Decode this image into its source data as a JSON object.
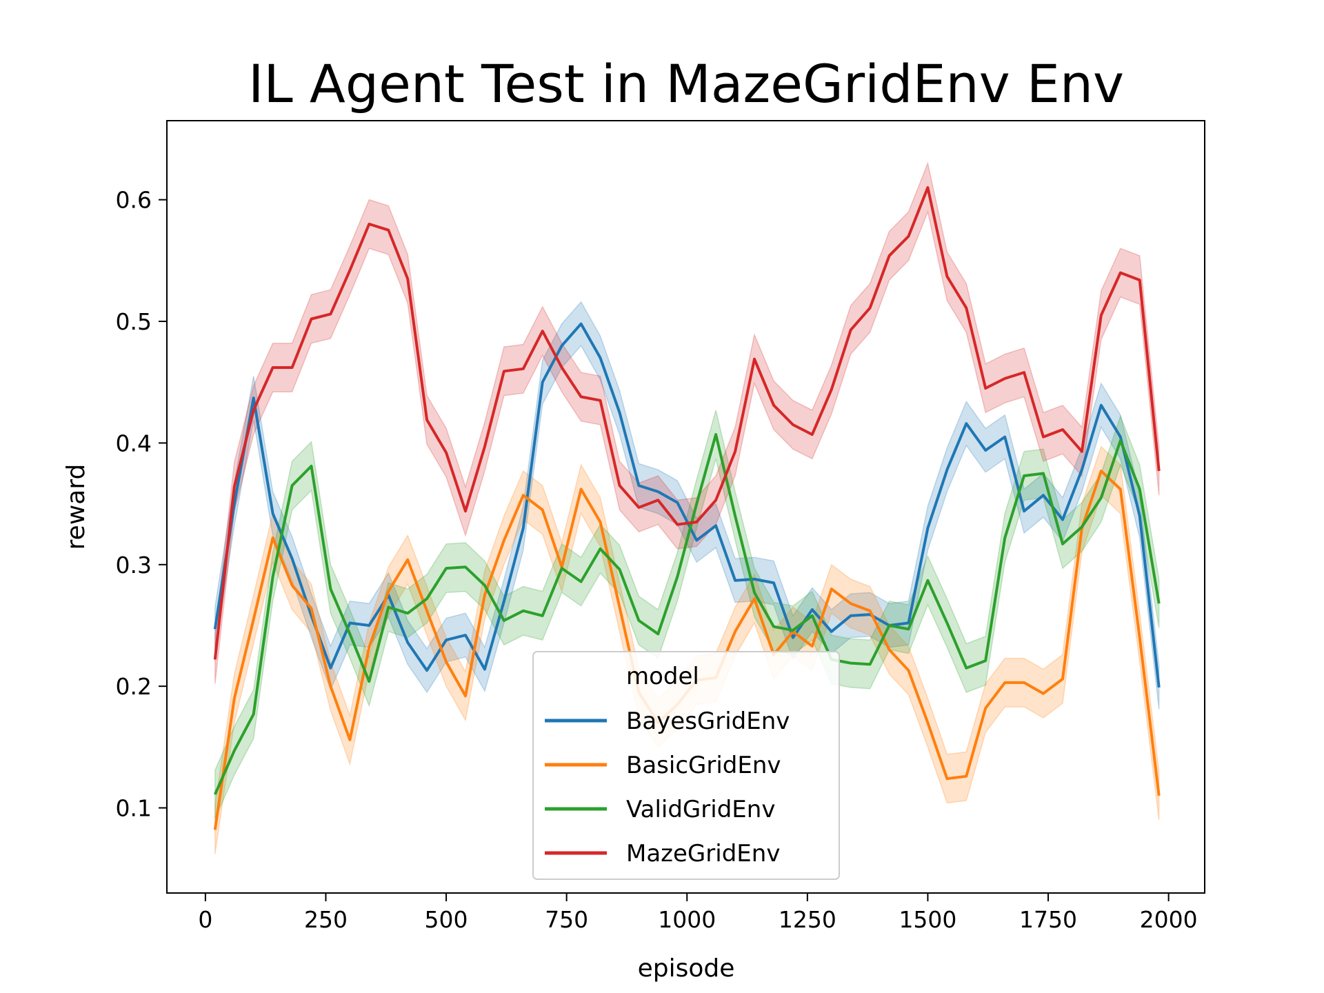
{
  "chart_data": {
    "type": "line",
    "title": "IL Agent Test in MazeGridEnv Env",
    "xlabel": "episode",
    "ylabel": "reward",
    "xlim": [
      -80,
      2075
    ],
    "ylim": [
      0.03,
      0.665
    ],
    "xticks": [
      0,
      250,
      500,
      750,
      1000,
      1250,
      1500,
      1750,
      2000
    ],
    "yticks": [
      0.1,
      0.2,
      0.3,
      0.4,
      0.5,
      0.6
    ],
    "x": [
      20,
      60,
      100,
      140,
      180,
      220,
      260,
      300,
      340,
      380,
      420,
      460,
      500,
      540,
      580,
      620,
      660,
      700,
      740,
      780,
      820,
      860,
      900,
      940,
      980,
      1020,
      1060,
      1100,
      1140,
      1180,
      1220,
      1260,
      1300,
      1340,
      1380,
      1420,
      1460,
      1500,
      1540,
      1580,
      1620,
      1660,
      1700,
      1740,
      1780,
      1820,
      1860,
      1900,
      1940,
      1980
    ],
    "legend": {
      "title": "model",
      "position": "lower center"
    },
    "series": [
      {
        "name": "BayesGridEnv",
        "color": "#1f77b4",
        "band": 0.018,
        "values": [
          0.247,
          0.35,
          0.437,
          0.342,
          0.305,
          0.258,
          0.215,
          0.252,
          0.25,
          0.275,
          0.236,
          0.213,
          0.238,
          0.242,
          0.214,
          0.27,
          0.33,
          0.45,
          0.48,
          0.498,
          0.47,
          0.425,
          0.365,
          0.36,
          0.351,
          0.32,
          0.332,
          0.287,
          0.288,
          0.285,
          0.24,
          0.263,
          0.245,
          0.258,
          0.259,
          0.25,
          0.252,
          0.33,
          0.378,
          0.416,
          0.394,
          0.405,
          0.344,
          0.357,
          0.337,
          0.378,
          0.431,
          0.405,
          0.34,
          0.199
        ]
      },
      {
        "name": "BasicGridEnv",
        "color": "#ff7f0e",
        "band": 0.02,
        "values": [
          0.082,
          0.19,
          0.255,
          0.322,
          0.283,
          0.264,
          0.2,
          0.156,
          0.232,
          0.278,
          0.304,
          0.262,
          0.22,
          0.192,
          0.275,
          0.32,
          0.357,
          0.345,
          0.298,
          0.362,
          0.335,
          0.265,
          0.195,
          0.17,
          0.185,
          0.205,
          0.207,
          0.245,
          0.272,
          0.226,
          0.245,
          0.233,
          0.28,
          0.268,
          0.262,
          0.23,
          0.213,
          0.17,
          0.124,
          0.126,
          0.182,
          0.203,
          0.203,
          0.194,
          0.206,
          0.33,
          0.377,
          0.362,
          0.24,
          0.11
        ]
      },
      {
        "name": "ValidGridEnv",
        "color": "#2ca02c",
        "band": 0.02,
        "values": [
          0.111,
          0.147,
          0.177,
          0.29,
          0.365,
          0.381,
          0.28,
          0.243,
          0.204,
          0.265,
          0.26,
          0.272,
          0.297,
          0.298,
          0.283,
          0.254,
          0.262,
          0.258,
          0.297,
          0.286,
          0.313,
          0.296,
          0.254,
          0.243,
          0.29,
          0.35,
          0.407,
          0.34,
          0.277,
          0.249,
          0.246,
          0.258,
          0.222,
          0.219,
          0.218,
          0.25,
          0.247,
          0.287,
          0.252,
          0.215,
          0.221,
          0.322,
          0.373,
          0.375,
          0.317,
          0.331,
          0.355,
          0.402,
          0.362,
          0.268
        ]
      },
      {
        "name": "MazeGridEnv",
        "color": "#d62728",
        "band": 0.02,
        "values": [
          0.222,
          0.364,
          0.427,
          0.462,
          0.462,
          0.502,
          0.506,
          0.542,
          0.58,
          0.575,
          0.535,
          0.419,
          0.392,
          0.344,
          0.397,
          0.459,
          0.461,
          0.492,
          0.462,
          0.438,
          0.435,
          0.365,
          0.347,
          0.353,
          0.333,
          0.335,
          0.353,
          0.393,
          0.469,
          0.431,
          0.415,
          0.407,
          0.444,
          0.493,
          0.511,
          0.554,
          0.57,
          0.61,
          0.537,
          0.511,
          0.445,
          0.453,
          0.458,
          0.405,
          0.411,
          0.393,
          0.505,
          0.54,
          0.534,
          0.377
        ]
      }
    ]
  }
}
